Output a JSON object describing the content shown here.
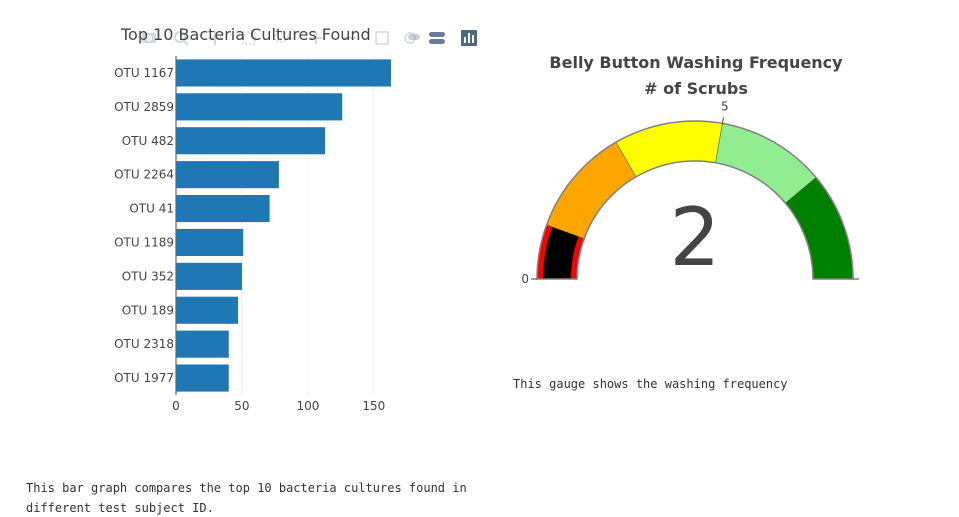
{
  "bar_panel": {
    "caption": "This bar graph compares the top 10 bacteria cultures found in different test subject ID."
  },
  "gauge_panel": {
    "caption": "This gauge shows the washing frequency"
  },
  "colors": {
    "bar": "#1f77b4",
    "gauge_ranges": [
      "#ff0000",
      "#ffa500",
      "#ffff00",
      "#90ee90",
      "#008000"
    ],
    "gauge_bar": "#000000"
  },
  "chart_data": [
    {
      "type": "bar",
      "orientation": "horizontal",
      "title": "Top 10 Bacteria Cultures Found",
      "categories": [
        "OTU 1167",
        "OTU 2859",
        "OTU 482",
        "OTU 2264",
        "OTU 41",
        "OTU 1189",
        "OTU 352",
        "OTU 189",
        "OTU 2318",
        "OTU 1977"
      ],
      "values": [
        163,
        126,
        113,
        78,
        71,
        51,
        50,
        47,
        40,
        40
      ],
      "xlim": [
        0,
        163
      ],
      "xticks": [
        0,
        50,
        100,
        150
      ],
      "grid": true
    },
    {
      "type": "gauge",
      "title_lines": [
        "Belly Button Washing Frequency",
        "# of Scrubs"
      ],
      "value": 2,
      "range": [
        0,
        9
      ],
      "ticks_shown": [
        0,
        5
      ],
      "steps": [
        {
          "range": [
            0,
            1
          ],
          "color": "#ff0000"
        },
        {
          "range": [
            1,
            3
          ],
          "color": "#ffa500"
        },
        {
          "range": [
            3,
            5
          ],
          "color": "#ffff00"
        },
        {
          "range": [
            5,
            7
          ],
          "color": "#90ee90"
        },
        {
          "range": [
            7,
            9
          ],
          "color": "#008000"
        }
      ],
      "bar_color": "#000000"
    }
  ]
}
